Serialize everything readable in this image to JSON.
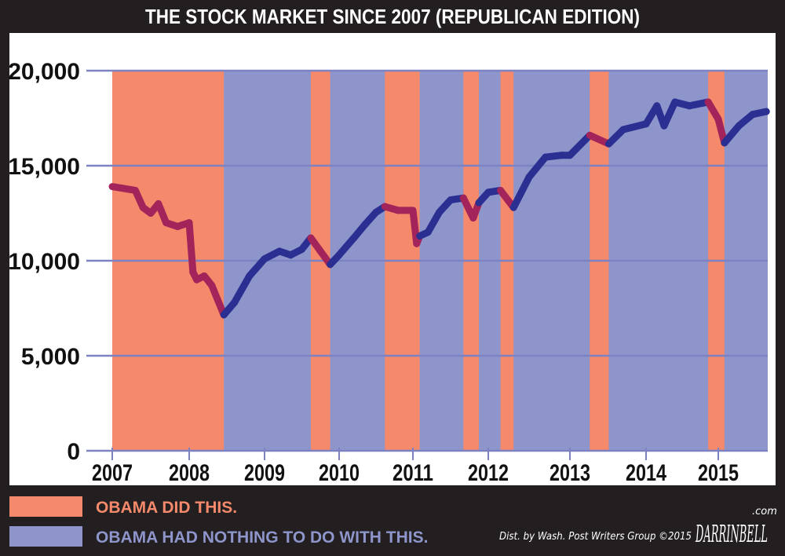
{
  "chart_data": {
    "type": "line",
    "title": "THE STOCK MARKET SINCE 2007 (REPUBLICAN EDITION)",
    "xlabel": "",
    "ylabel": "",
    "ylim": [
      0,
      20000
    ],
    "xlim": [
      2007,
      2015.72
    ],
    "grid": true,
    "y_ticks": [
      "0",
      "5,000",
      "10,000",
      "15,000",
      "20,000"
    ],
    "y_tick_values": [
      0,
      5000,
      10000,
      15000,
      20000
    ],
    "x_ticks": [
      "2007",
      "2008",
      "2009",
      "2010",
      "2011",
      "2012",
      "2013",
      "2014",
      "2015"
    ],
    "x_tick_values": [
      2007,
      2008,
      2009,
      2010,
      2011,
      2012,
      2013,
      2014,
      2015
    ],
    "bands": [
      {
        "category": "did",
        "start": 2007.0,
        "end": 2008.46
      },
      {
        "category": "did",
        "start": 2009.62,
        "end": 2009.88
      },
      {
        "category": "did",
        "start": 2010.62,
        "end": 2011.09
      },
      {
        "category": "did",
        "start": 2011.67,
        "end": 2011.875
      },
      {
        "category": "did",
        "start": 2012.15,
        "end": 2012.31
      },
      {
        "category": "did",
        "start": 2013.26,
        "end": 2013.51
      },
      {
        "category": "did",
        "start": 2014.86,
        "end": 2015.09
      }
    ],
    "series": [
      {
        "x": [
          2007.0,
          2007.3,
          2007.4,
          2007.5,
          2007.6,
          2007.7,
          2007.85,
          2008.0,
          2008.05,
          2008.1,
          2008.2,
          2008.3,
          2008.46,
          2008.6,
          2008.8,
          2009.0,
          2009.2,
          2009.35,
          2009.5,
          2009.62,
          2009.75,
          2009.88,
          2010.0,
          2010.2,
          2010.35,
          2010.5,
          2010.62,
          2010.8,
          2011.0,
          2011.05,
          2011.09,
          2011.2,
          2011.35,
          2011.5,
          2011.67,
          2011.8,
          2011.875,
          2012.0,
          2012.15,
          2012.31,
          2012.5,
          2012.7,
          2012.9,
          2013.0,
          2013.26,
          2013.51,
          2013.7,
          2014.0,
          2014.15,
          2014.25,
          2014.4,
          2014.6,
          2014.86,
          2015.0,
          2015.09,
          2015.3,
          2015.5,
          2015.7
        ],
        "y": [
          13900,
          13700,
          12800,
          12500,
          13000,
          12000,
          11800,
          12000,
          9400,
          9000,
          9200,
          8700,
          7150,
          7800,
          9200,
          10100,
          10500,
          10300,
          10600,
          11200,
          10500,
          9800,
          10300,
          11200,
          11900,
          12550,
          12850,
          12650,
          12650,
          10900,
          11300,
          11500,
          12550,
          13200,
          13300,
          12250,
          13050,
          13600,
          13700,
          12800,
          14400,
          15450,
          15550,
          15550,
          16600,
          16150,
          16900,
          17200,
          18150,
          17100,
          18350,
          18150,
          18350,
          17450,
          16200,
          17100,
          17700,
          17850
        ]
      }
    ],
    "legend": [
      {
        "key": "did",
        "label": "OBAMA DID THIS.",
        "color": "#f4896b",
        "line_color": "#a3245a"
      },
      {
        "key": "not",
        "label": "OBAMA HAD NOTHING TO DO WITH THIS.",
        "color": "#8e95cb",
        "line_color": "#2b2f91"
      }
    ],
    "legend_position": "bottom-left",
    "colors": {
      "background": "#231f20",
      "panel": "#ffffff",
      "grid": "#7d83c2",
      "axis_text": "#111111"
    }
  },
  "credit": "Dist. by Wash. Post Writers Group ©2015",
  "signature": "DARRINBELL",
  "signature_suffix": ".com"
}
